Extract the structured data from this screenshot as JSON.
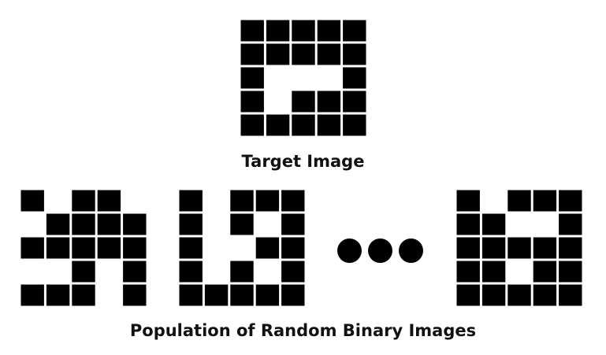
{
  "target": {
    "caption": "Target Image",
    "rows": [
      "11111",
      "11111",
      "10001",
      "10111",
      "11111"
    ]
  },
  "population": {
    "caption": "Population of Random Binary Images",
    "images": [
      {
        "rows": [
          "10110",
          "01111",
          "11111",
          "00101",
          "11101"
        ]
      },
      {
        "rows": [
          "10111",
          "10101",
          "10011",
          "10101",
          "11111"
        ]
      },
      {
        "rows": [
          "10111",
          "11001",
          "11111",
          "11011",
          "11111"
        ]
      }
    ]
  },
  "colors": {
    "on": "#000000",
    "off": "#ffffff"
  }
}
